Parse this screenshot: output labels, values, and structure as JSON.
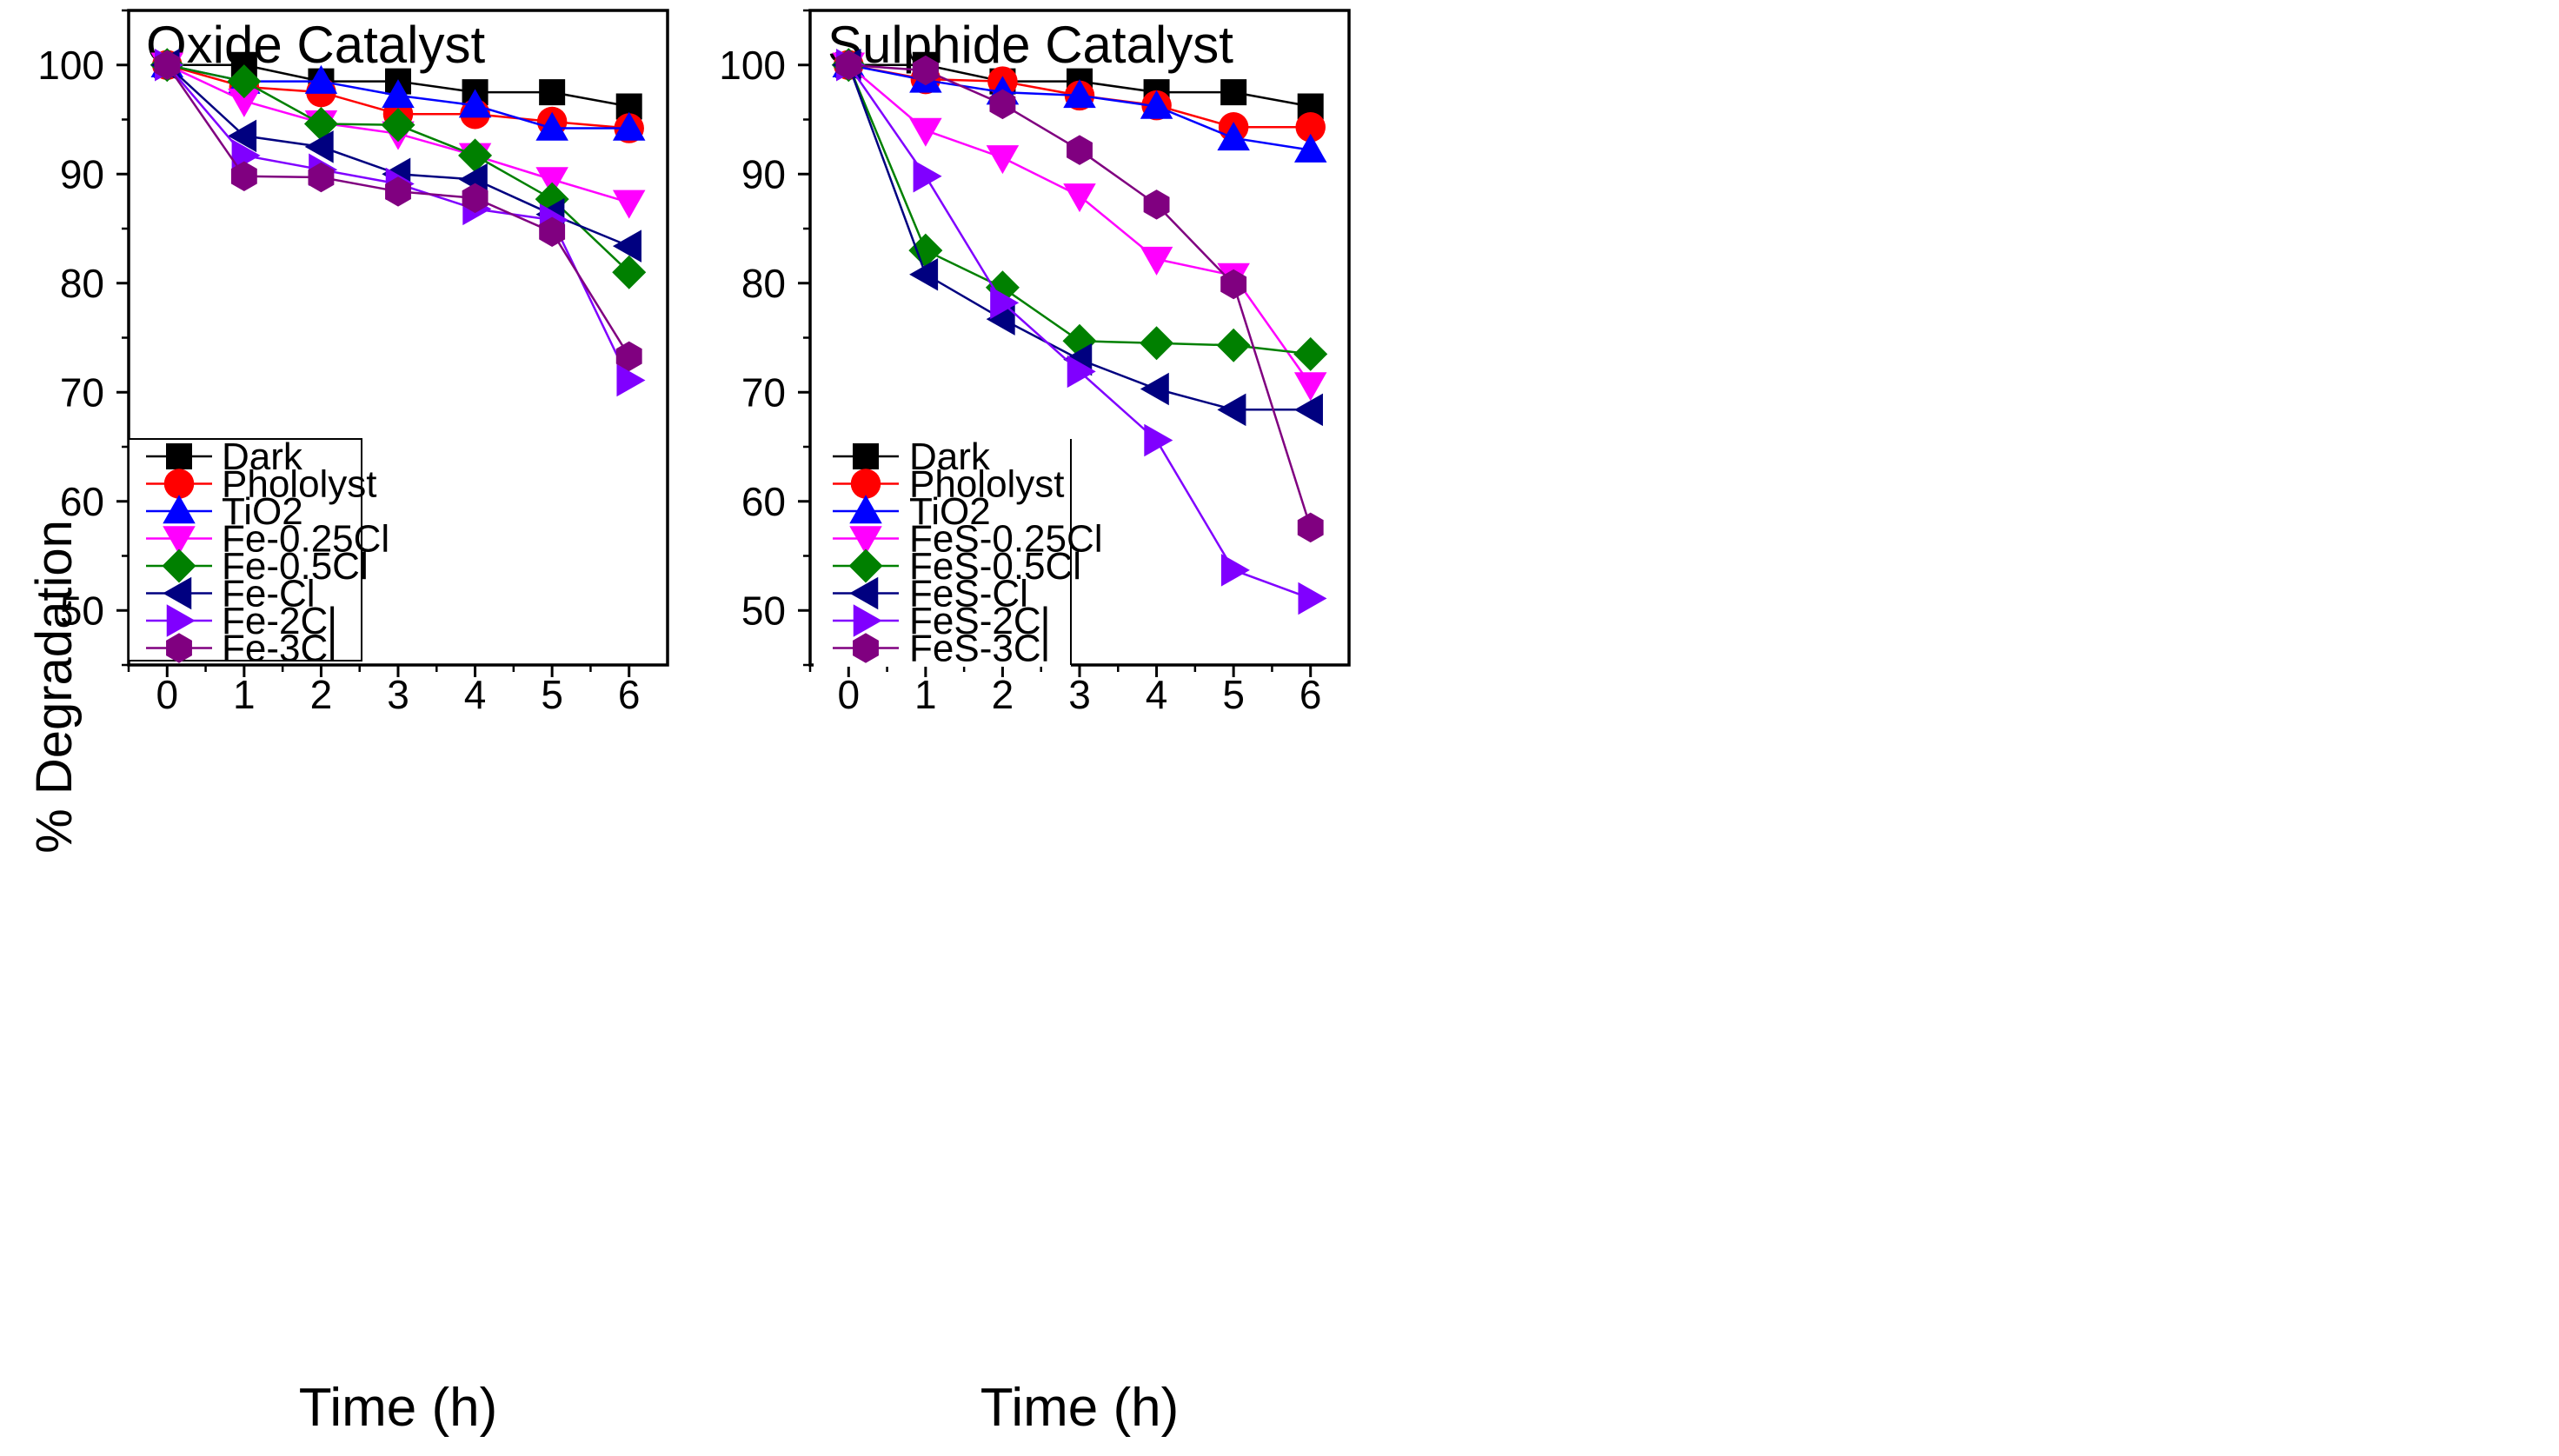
{
  "figure": {
    "ylabel": "% Degradation"
  },
  "chart_data": [
    {
      "type": "line",
      "title": "Oxide Catalyst",
      "xlabel": "Time (h)",
      "ylabel": "% Degradation",
      "xlim": [
        -0.5,
        6.5
      ],
      "ylim": [
        45,
        105
      ],
      "xticks": [
        0,
        1,
        2,
        3,
        4,
        5,
        6
      ],
      "yticks": [
        50,
        60,
        70,
        80,
        90,
        100
      ],
      "x": [
        0,
        1,
        2,
        3,
        4,
        5,
        6
      ],
      "legend_position": "bottom-left",
      "series": [
        {
          "name": "Dark",
          "color": "#000000",
          "marker": "square",
          "values": [
            100,
            100,
            98.5,
            98.5,
            97.5,
            97.5,
            96.2
          ]
        },
        {
          "name": "Phololyst",
          "color": "#ff0000",
          "marker": "circle",
          "values": [
            100,
            98,
            97.5,
            95.5,
            95.5,
            94.8,
            94.2
          ]
        },
        {
          "name": "TiO2",
          "color": "#0000ff",
          "marker": "triangle-up",
          "values": [
            100,
            98.5,
            98.5,
            97.2,
            96.3,
            94.2,
            94.2
          ]
        },
        {
          "name": "Fe-0.25Cl",
          "color": "#ff00ff",
          "marker": "triangle-down",
          "values": [
            100,
            96.7,
            94.7,
            93.7,
            91.7,
            89.5,
            87.4
          ]
        },
        {
          "name": "Fe-0.5Cl",
          "color": "#008000",
          "marker": "diamond",
          "values": [
            100,
            98.5,
            94.6,
            94.5,
            91.7,
            87.7,
            81
          ]
        },
        {
          "name": "Fe-Cl",
          "color": "#000080",
          "marker": "triangle-left",
          "values": [
            100,
            93.5,
            92.5,
            90,
            89.5,
            86.3,
            83.4
          ]
        },
        {
          "name": "Fe-2Cl",
          "color": "#8000ff",
          "marker": "triangle-right",
          "values": [
            100,
            91.7,
            90.4,
            89.1,
            86.8,
            85.8,
            71.1
          ]
        },
        {
          "name": "Fe-3Cl",
          "color": "#800080",
          "marker": "hexagon",
          "values": [
            100,
            89.8,
            89.7,
            88.4,
            87.8,
            84.7,
            73.3
          ]
        }
      ]
    },
    {
      "type": "line",
      "title": "Sulphide Catalyst",
      "xlabel": "Time (h)",
      "ylabel": "% Degradation",
      "xlim": [
        -0.5,
        6.5
      ],
      "ylim": [
        45,
        105
      ],
      "xticks": [
        0,
        1,
        2,
        3,
        4,
        5,
        6
      ],
      "yticks": [
        50,
        60,
        70,
        80,
        90,
        100
      ],
      "x": [
        0,
        1,
        2,
        3,
        4,
        5,
        6
      ],
      "legend_position": "bottom-left",
      "series": [
        {
          "name": "Dark",
          "color": "#000000",
          "marker": "square",
          "values": [
            100,
            100,
            98.5,
            98.5,
            97.5,
            97.5,
            96.2
          ]
        },
        {
          "name": "Phololyst",
          "color": "#ff0000",
          "marker": "circle",
          "values": [
            100,
            98.7,
            98.5,
            97.2,
            96.3,
            94.3,
            94.3
          ]
        },
        {
          "name": "TiO2",
          "color": "#0000ff",
          "marker": "triangle-up",
          "values": [
            100,
            98.6,
            97.5,
            97.2,
            96.2,
            93.3,
            92.2
          ]
        },
        {
          "name": "FeS-0.25Cl",
          "color": "#ff00ff",
          "marker": "triangle-down",
          "values": [
            100,
            94,
            91.5,
            88,
            82.2,
            80.7,
            70.7
          ]
        },
        {
          "name": "FeS-0.5Cl",
          "color": "#008000",
          "marker": "diamond",
          "values": [
            100,
            83,
            79.6,
            74.7,
            74.5,
            74.3,
            73.5
          ]
        },
        {
          "name": "FeS-Cl",
          "color": "#000080",
          "marker": "triangle-left",
          "values": [
            100,
            80.8,
            76.7,
            73,
            70.3,
            68.4,
            68.4
          ]
        },
        {
          "name": "FeS-2Cl",
          "color": "#8000ff",
          "marker": "triangle-right",
          "values": [
            100,
            89.8,
            78.2,
            71.9,
            65.6,
            53.7,
            51.1
          ]
        },
        {
          "name": "FeS-3Cl",
          "color": "#800080",
          "marker": "hexagon",
          "values": [
            100,
            99.5,
            96.4,
            92.2,
            87.2,
            79.9,
            57.6
          ]
        }
      ]
    }
  ]
}
